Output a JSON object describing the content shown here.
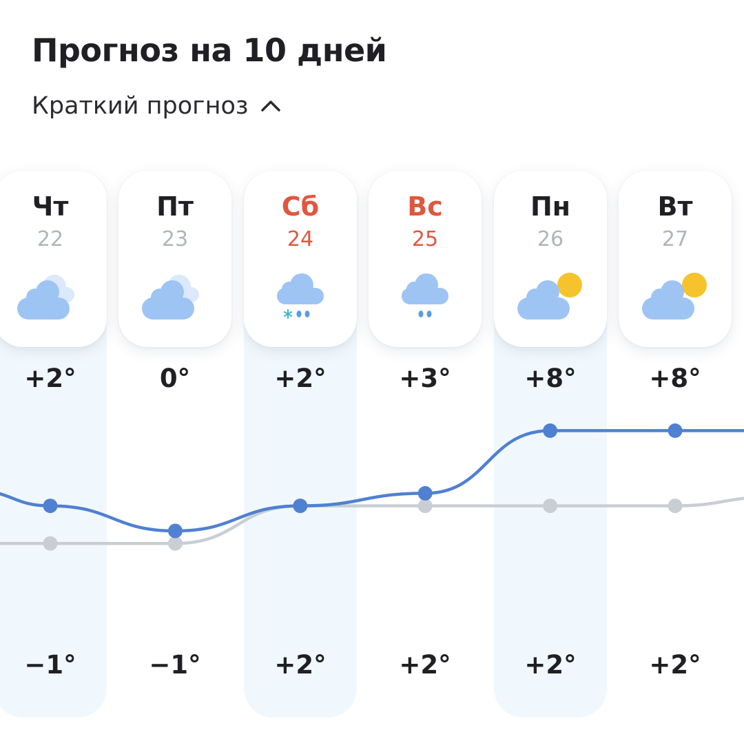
{
  "header": {
    "title": "Прогноз на 10 дней",
    "toggle_label": "Краткий прогноз",
    "toggle_icon": "chevron-up-icon"
  },
  "colors": {
    "weekend": "#e0573f",
    "line_day": "#4f80d2",
    "line_night": "#c9ced4",
    "column_shade": "#f1f8fd"
  },
  "days": [
    {
      "dow": "Чт",
      "date": "22",
      "weekend": false,
      "icon": "cloudy-icon",
      "max": "+2°",
      "min": "−1°"
    },
    {
      "dow": "Пт",
      "date": "23",
      "weekend": false,
      "icon": "cloudy-icon",
      "max": "0°",
      "min": "−1°"
    },
    {
      "dow": "Сб",
      "date": "24",
      "weekend": true,
      "icon": "rain-snow-icon",
      "max": "+2°",
      "min": "+2°"
    },
    {
      "dow": "Вс",
      "date": "25",
      "weekend": true,
      "icon": "rain-icon",
      "max": "+3°",
      "min": "+2°"
    },
    {
      "dow": "Пн",
      "date": "26",
      "weekend": false,
      "icon": "partly-cloudy-icon",
      "max": "+8°",
      "min": "+2°"
    },
    {
      "dow": "Вт",
      "date": "27",
      "weekend": false,
      "icon": "partly-cloudy-icon",
      "max": "+8°",
      "min": "+2°"
    }
  ],
  "chart_data": {
    "type": "line",
    "categories": [
      "22",
      "23",
      "24",
      "25",
      "26",
      "27"
    ],
    "series": [
      {
        "values": [
          2,
          0,
          2,
          3,
          8,
          8
        ]
      },
      {
        "values": [
          -1,
          -1,
          2,
          2,
          2,
          2
        ]
      }
    ]
  }
}
